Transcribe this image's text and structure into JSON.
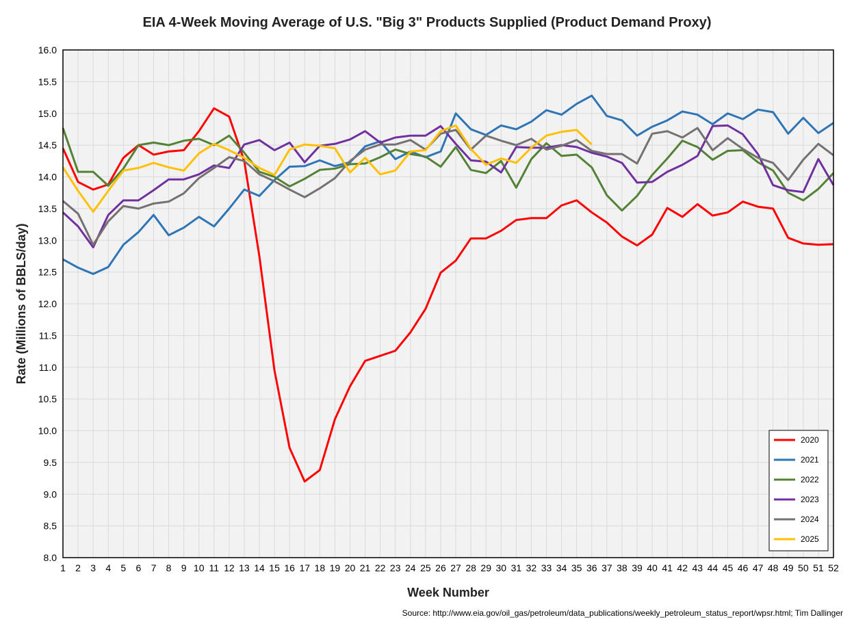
{
  "chart_data": {
    "type": "line",
    "title": "EIA 4-Week Moving Average of U.S. \"Big 3\" Products Supplied (Product Demand Proxy)",
    "xlabel": "Week Number",
    "ylabel": "Rate (Millions of BBLS/day)",
    "source": "Source: http://www.eia.gov/oil_gas/petroleum/data_publications/weekly_petroleum_status_report/wpsr.html; Tim Dallinger",
    "xlim": [
      1,
      52
    ],
    "ylim": [
      8.0,
      16.0
    ],
    "ytick_step": 0.5,
    "grid": true,
    "legend_position": "bottom-right",
    "series": [
      {
        "name": "2020",
        "color": "#ff0000",
        "values": [
          14.45,
          13.92,
          13.8,
          13.88,
          14.3,
          14.5,
          14.35,
          14.4,
          14.42,
          14.72,
          15.08,
          14.95,
          14.25,
          12.75,
          10.95,
          9.73,
          9.2,
          9.38,
          10.18,
          10.7,
          11.1,
          11.18,
          11.26,
          11.55,
          11.92,
          12.49,
          12.68,
          13.03,
          13.03,
          13.15,
          13.32,
          13.35,
          13.35,
          13.55,
          13.63,
          13.44,
          13.28,
          13.06,
          12.92,
          13.09,
          13.51,
          13.37,
          13.57,
          13.39,
          13.44,
          13.61,
          13.53,
          13.5,
          13.04,
          12.95,
          12.93,
          12.94
        ]
      },
      {
        "name": "2021",
        "color": "#2e75b6",
        "values": [
          12.7,
          12.57,
          12.47,
          12.58,
          12.93,
          13.13,
          13.4,
          13.08,
          13.2,
          13.37,
          13.22,
          13.5,
          13.8,
          13.7,
          13.95,
          14.16,
          14.17,
          14.26,
          14.17,
          14.23,
          14.48,
          14.56,
          14.28,
          14.4,
          14.31,
          14.4,
          15.0,
          14.75,
          14.66,
          14.81,
          14.75,
          14.87,
          15.05,
          14.98,
          15.15,
          15.28,
          14.96,
          14.89,
          14.65,
          14.79,
          14.89,
          15.03,
          14.98,
          14.83,
          15.0,
          14.91,
          15.06,
          15.02,
          14.68,
          14.93,
          14.69,
          14.85
        ]
      },
      {
        "name": "2022",
        "color": "#548235",
        "values": [
          14.77,
          14.08,
          14.08,
          13.86,
          14.13,
          14.5,
          14.54,
          14.5,
          14.57,
          14.6,
          14.5,
          14.65,
          14.38,
          14.08,
          14.0,
          13.85,
          13.97,
          14.11,
          14.13,
          14.2,
          14.21,
          14.31,
          14.43,
          14.36,
          14.32,
          14.16,
          14.47,
          14.11,
          14.06,
          14.25,
          13.83,
          14.28,
          14.53,
          14.33,
          14.35,
          14.15,
          13.71,
          13.47,
          13.7,
          14.03,
          14.29,
          14.57,
          14.47,
          14.27,
          14.41,
          14.42,
          14.23,
          14.1,
          13.75,
          13.63,
          13.81,
          14.06
        ]
      },
      {
        "name": "2023",
        "color": "#7030a0",
        "values": [
          13.44,
          13.22,
          12.89,
          13.4,
          13.63,
          13.63,
          13.79,
          13.96,
          13.96,
          14.04,
          14.18,
          14.14,
          14.51,
          14.58,
          14.42,
          14.54,
          14.23,
          14.49,
          14.52,
          14.59,
          14.72,
          14.54,
          14.62,
          14.65,
          14.65,
          14.8,
          14.52,
          14.26,
          14.24,
          14.07,
          14.47,
          14.46,
          14.46,
          14.5,
          14.47,
          14.38,
          14.32,
          14.22,
          13.91,
          13.92,
          14.08,
          14.19,
          14.33,
          14.8,
          14.81,
          14.67,
          14.36,
          13.87,
          13.79,
          13.76,
          14.28,
          13.87
        ]
      },
      {
        "name": "2024",
        "color": "#767171",
        "values": [
          13.62,
          13.42,
          12.93,
          13.3,
          13.54,
          13.5,
          13.58,
          13.61,
          13.74,
          13.98,
          14.14,
          14.31,
          14.25,
          14.04,
          13.93,
          13.8,
          13.68,
          13.82,
          13.98,
          14.25,
          14.43,
          14.51,
          14.51,
          14.58,
          14.43,
          14.68,
          14.74,
          14.43,
          14.65,
          14.57,
          14.5,
          14.6,
          14.43,
          14.49,
          14.58,
          14.41,
          14.36,
          14.36,
          14.21,
          14.68,
          14.72,
          14.62,
          14.77,
          14.42,
          14.61,
          14.44,
          14.3,
          14.22,
          13.95,
          14.27,
          14.52,
          14.34
        ]
      },
      {
        "name": "2025",
        "color": "#ffc000",
        "values": [
          14.15,
          13.78,
          13.45,
          13.78,
          14.1,
          14.14,
          14.22,
          14.15,
          14.1,
          14.37,
          14.52,
          14.42,
          14.3,
          14.14,
          14.03,
          14.43,
          14.51,
          14.49,
          14.45,
          14.07,
          14.3,
          14.04,
          14.1,
          14.4,
          14.42,
          14.72,
          14.81,
          14.44,
          14.19,
          14.29,
          14.22,
          14.46,
          14.65,
          14.71,
          14.74,
          14.51
        ]
      }
    ]
  }
}
